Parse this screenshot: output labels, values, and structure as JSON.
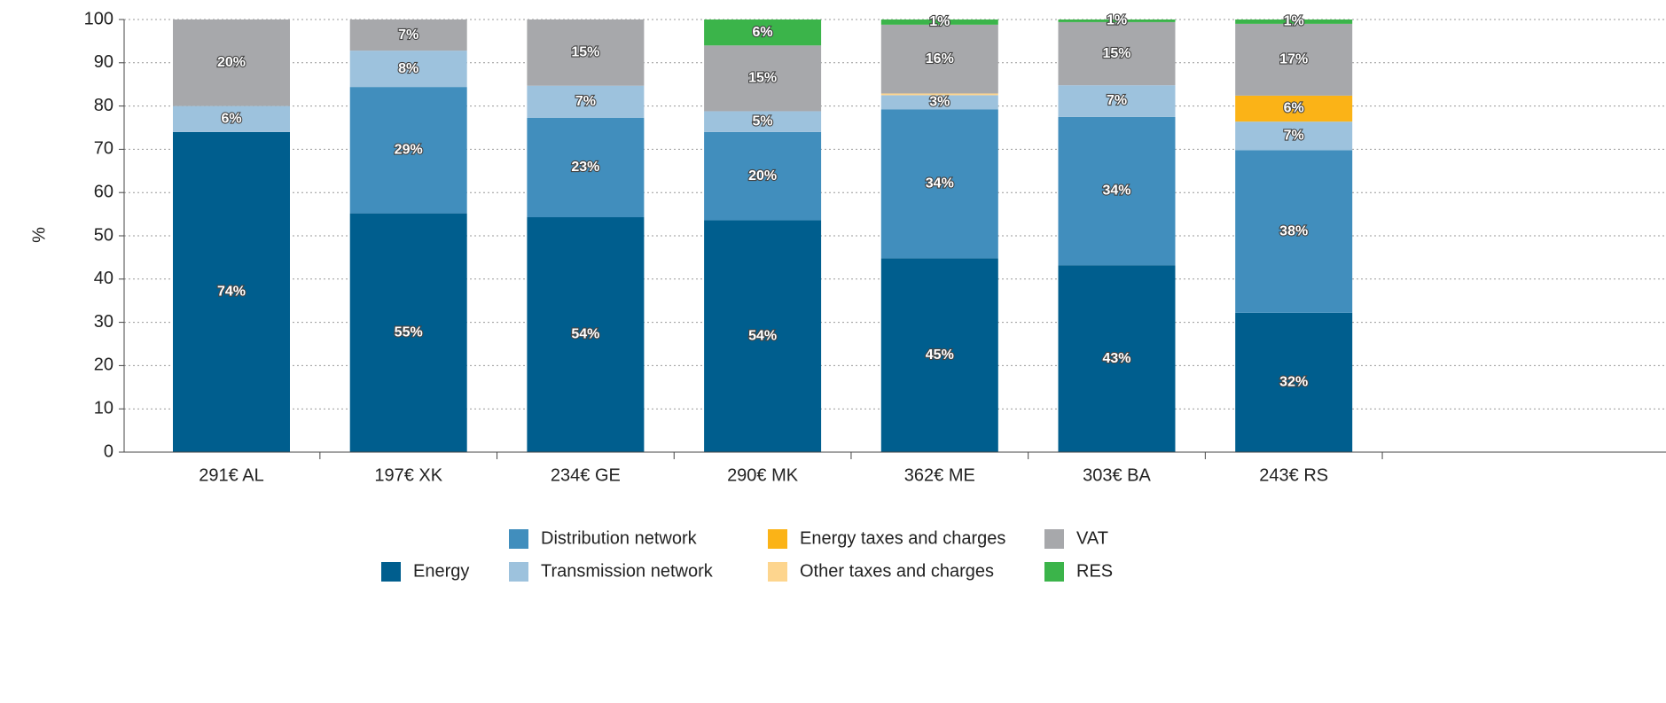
{
  "chart_data": {
    "type": "stacked_bar",
    "ylabel": "%",
    "categories": [
      "291€ AL",
      "197€ XK",
      "234€ GE",
      "290€ MK",
      "362€ ME",
      "303€ BA",
      "243€ RS"
    ],
    "series": [
      {
        "name": "Energy",
        "color": "#005e8e",
        "values": [
          74.0,
          55.2,
          54.3,
          53.6,
          44.8,
          43.2,
          32.2
        ],
        "value_labels": [
          "74%",
          "55%",
          "54%",
          "54%",
          "45%",
          "43%",
          "32%"
        ]
      },
      {
        "name": "Distribution network",
        "color": "#418ebd",
        "values": [
          0,
          29.2,
          23.0,
          20.4,
          34.4,
          34.3,
          37.6
        ],
        "value_labels": [
          null,
          "29%",
          "23%",
          "20%",
          "34%",
          "34%",
          "38%"
        ]
      },
      {
        "name": "Transmission network",
        "color": "#9dc2dd",
        "values": [
          6.0,
          8.4,
          7.4,
          4.8,
          3.3,
          7.3,
          6.6
        ],
        "value_labels": [
          "6%",
          "8%",
          "7%",
          "5%",
          "3%",
          "7%",
          "7%"
        ]
      },
      {
        "name": "Energy taxes and charges",
        "color": "#fbb317",
        "values": [
          0,
          0,
          0,
          0,
          0,
          0,
          6.0
        ],
        "value_labels": [
          null,
          null,
          null,
          null,
          null,
          null,
          "6%"
        ]
      },
      {
        "name": "Other taxes and charges",
        "color": "#fdd58e",
        "values": [
          0,
          0,
          0,
          0,
          0.4,
          0,
          0
        ],
        "value_labels": [
          null,
          null,
          null,
          null,
          null,
          null,
          null
        ]
      },
      {
        "name": "VAT",
        "color": "#a7a8ab",
        "values": [
          20.0,
          7.2,
          15.3,
          15.2,
          15.9,
          14.6,
          16.6
        ],
        "value_labels": [
          "20%",
          "7%",
          "15%",
          "15%",
          "16%",
          "15%",
          "17%"
        ]
      },
      {
        "name": "RES",
        "color": "#3bb44a",
        "values": [
          0,
          0,
          0,
          6.0,
          1.2,
          0.6,
          1.0
        ],
        "value_labels": [
          null,
          null,
          null,
          "6%",
          "1%",
          "1%",
          "1%"
        ]
      }
    ],
    "ylim": [
      0,
      100
    ],
    "yticks": [
      0,
      10,
      20,
      30,
      40,
      50,
      60,
      70,
      80,
      90,
      100
    ],
    "grid": true
  }
}
